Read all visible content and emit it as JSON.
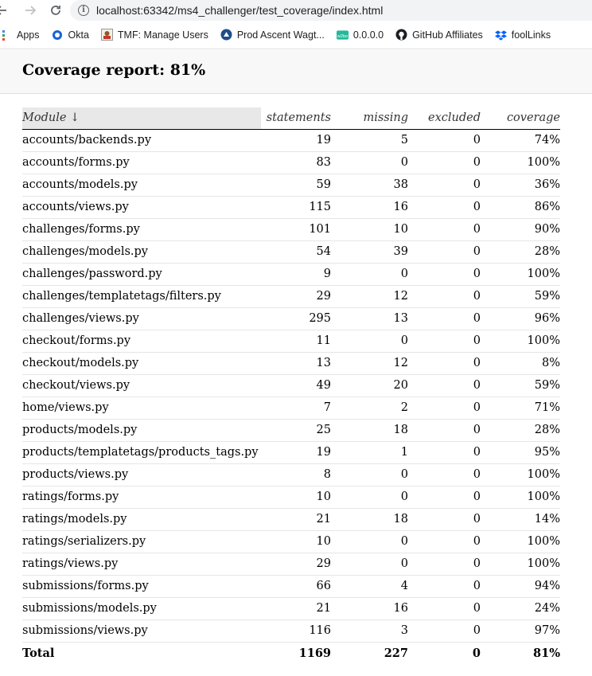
{
  "browser": {
    "url": "localhost:63342/ms4_challenger/test_coverage/index.html",
    "bookmarks": [
      {
        "label": "Apps",
        "icon": "apps-grid-icon"
      },
      {
        "label": "Okta",
        "icon": "okta-icon"
      },
      {
        "label": "TMF: Manage Users",
        "icon": "tmf-icon"
      },
      {
        "label": "Prod Ascent Wagt...",
        "icon": "ascent-icon"
      },
      {
        "label": "0.0.0.0",
        "icon": "w2bo-icon"
      },
      {
        "label": "GitHub Affiliates",
        "icon": "github-icon"
      },
      {
        "label": "foolLinks",
        "icon": "dropbox-icon"
      }
    ]
  },
  "report": {
    "title": "Coverage report: 81%",
    "columns": {
      "module": "Module ↓",
      "statements": "statements",
      "missing": "missing",
      "excluded": "excluded",
      "coverage": "coverage"
    },
    "rows": [
      {
        "module": "accounts/backends.py",
        "statements": "19",
        "missing": "5",
        "excluded": "0",
        "coverage": "74%"
      },
      {
        "module": "accounts/forms.py",
        "statements": "83",
        "missing": "0",
        "excluded": "0",
        "coverage": "100%"
      },
      {
        "module": "accounts/models.py",
        "statements": "59",
        "missing": "38",
        "excluded": "0",
        "coverage": "36%"
      },
      {
        "module": "accounts/views.py",
        "statements": "115",
        "missing": "16",
        "excluded": "0",
        "coverage": "86%"
      },
      {
        "module": "challenges/forms.py",
        "statements": "101",
        "missing": "10",
        "excluded": "0",
        "coverage": "90%"
      },
      {
        "module": "challenges/models.py",
        "statements": "54",
        "missing": "39",
        "excluded": "0",
        "coverage": "28%"
      },
      {
        "module": "challenges/password.py",
        "statements": "9",
        "missing": "0",
        "excluded": "0",
        "coverage": "100%"
      },
      {
        "module": "challenges/templatetags/filters.py",
        "statements": "29",
        "missing": "12",
        "excluded": "0",
        "coverage": "59%"
      },
      {
        "module": "challenges/views.py",
        "statements": "295",
        "missing": "13",
        "excluded": "0",
        "coverage": "96%"
      },
      {
        "module": "checkout/forms.py",
        "statements": "11",
        "missing": "0",
        "excluded": "0",
        "coverage": "100%"
      },
      {
        "module": "checkout/models.py",
        "statements": "13",
        "missing": "12",
        "excluded": "0",
        "coverage": "8%"
      },
      {
        "module": "checkout/views.py",
        "statements": "49",
        "missing": "20",
        "excluded": "0",
        "coverage": "59%"
      },
      {
        "module": "home/views.py",
        "statements": "7",
        "missing": "2",
        "excluded": "0",
        "coverage": "71%"
      },
      {
        "module": "products/models.py",
        "statements": "25",
        "missing": "18",
        "excluded": "0",
        "coverage": "28%"
      },
      {
        "module": "products/templatetags/products_tags.py",
        "statements": "19",
        "missing": "1",
        "excluded": "0",
        "coverage": "95%"
      },
      {
        "module": "products/views.py",
        "statements": "8",
        "missing": "0",
        "excluded": "0",
        "coverage": "100%"
      },
      {
        "module": "ratings/forms.py",
        "statements": "10",
        "missing": "0",
        "excluded": "0",
        "coverage": "100%"
      },
      {
        "module": "ratings/models.py",
        "statements": "21",
        "missing": "18",
        "excluded": "0",
        "coverage": "14%"
      },
      {
        "module": "ratings/serializers.py",
        "statements": "10",
        "missing": "0",
        "excluded": "0",
        "coverage": "100%"
      },
      {
        "module": "ratings/views.py",
        "statements": "29",
        "missing": "0",
        "excluded": "0",
        "coverage": "100%"
      },
      {
        "module": "submissions/forms.py",
        "statements": "66",
        "missing": "4",
        "excluded": "0",
        "coverage": "94%"
      },
      {
        "module": "submissions/models.py",
        "statements": "21",
        "missing": "16",
        "excluded": "0",
        "coverage": "24%"
      },
      {
        "module": "submissions/views.py",
        "statements": "116",
        "missing": "3",
        "excluded": "0",
        "coverage": "97%"
      }
    ],
    "total": {
      "module": "Total",
      "statements": "1169",
      "missing": "227",
      "excluded": "0",
      "coverage": "81%"
    }
  }
}
